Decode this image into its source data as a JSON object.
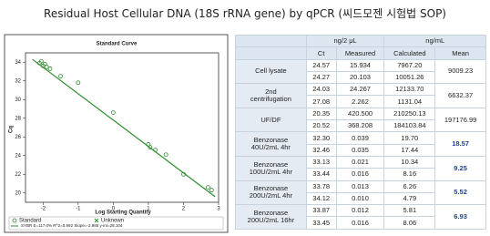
{
  "title": "Residual Host Cellular DNA (18S rRNA gene) by qPCR (씨드모젠 시험법 SOP)",
  "chart_data": {
    "type": "scatter",
    "title": "Standard Curve",
    "x_label": "Log Starting Quantity",
    "y_label": "Cq",
    "series": [
      {
        "name": "Standard",
        "color": "#2e8b2e",
        "x": [
          -2.1,
          -2.05,
          -2,
          -1.95,
          -1.9,
          -1.8,
          -1.5,
          -1,
          0,
          1,
          1.05,
          1.2,
          1.5,
          2,
          2.7,
          2.8
        ],
        "values": [
          33.9,
          34.1,
          33.6,
          33.8,
          33.5,
          33.3,
          32.5,
          31.8,
          28.6,
          25.2,
          24.9,
          24.6,
          24.1,
          22.0,
          20.6,
          20.3
        ]
      },
      {
        "name": "Unknown",
        "color": "#2e8b2e",
        "x": [],
        "values": []
      }
    ],
    "trendline": {
      "color": "#2e8b2e",
      "x": [
        -2.3,
        2.9
      ],
      "values": [
        34.3,
        19.6
      ]
    },
    "fit_label": "SYBR  E=117.0% R^2=0.992 Slope=-2.985 y-int=28.104",
    "xlim": [
      -2.5,
      3
    ],
    "xticks": [
      -2,
      -1,
      0,
      1,
      2,
      3
    ],
    "ylim": [
      19,
      35
    ],
    "yticks": [
      20,
      22,
      24,
      26,
      28,
      30,
      32,
      34
    ],
    "grid": false
  },
  "table": {
    "units": [
      "ng/2 μL",
      "ng/mL"
    ],
    "columns": [
      "Ct",
      "Measured",
      "Calculated",
      "Mean"
    ],
    "rows": [
      {
        "label": "Cell lysate",
        "runs": [
          [
            "24.57",
            "15.934",
            "7967.20"
          ],
          [
            "24.27",
            "20.103",
            "10051.26"
          ]
        ],
        "mean": "9009.23"
      },
      {
        "label": "2nd\ncentrifugation",
        "runs": [
          [
            "24.03",
            "24.267",
            "12133.70"
          ],
          [
            "27.08",
            "2.262",
            "1131.04"
          ]
        ],
        "mean": "6632.37"
      },
      {
        "label": "UF/DF",
        "runs": [
          [
            "20.35",
            "420.500",
            "210250.13"
          ],
          [
            "20.52",
            "368.208",
            "184103.84"
          ]
        ],
        "mean": "197176.99"
      },
      {
        "label": "Benzonase\n40U/2mL 4hr",
        "runs": [
          [
            "32.30",
            "0.039",
            "19.70"
          ],
          [
            "32.46",
            "0.035",
            "17.44"
          ]
        ],
        "mean": "18.57"
      },
      {
        "label": "Benzonase\n100U/2mL 4hr",
        "runs": [
          [
            "33.13",
            "0.021",
            "10.34"
          ],
          [
            "33.44",
            "0.016",
            "8.16"
          ]
        ],
        "mean": "9.25"
      },
      {
        "label": "Benzonase\n200U/2mL 4hr",
        "runs": [
          [
            "33.78",
            "0.013",
            "6.26"
          ],
          [
            "34.12",
            "0.010",
            "4.79"
          ]
        ],
        "mean": "5.52"
      },
      {
        "label": "Benzonase\n200U/2mL 16hr",
        "runs": [
          [
            "33.87",
            "0.012",
            "5.81"
          ],
          [
            "33.45",
            "0.016",
            "8.06"
          ]
        ],
        "mean": "6.93"
      }
    ]
  }
}
